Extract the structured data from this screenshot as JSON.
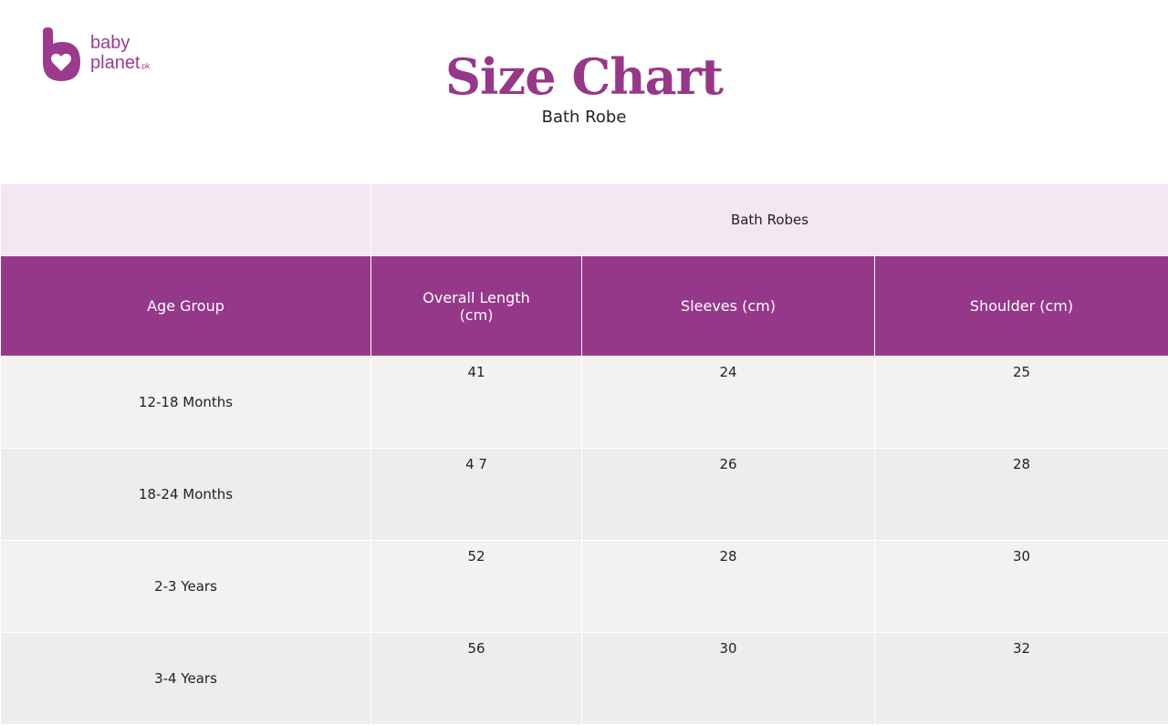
{
  "brand": {
    "line1": "baby",
    "line2": "planet",
    "suffix": ".pk",
    "color": "#96388a"
  },
  "title": "Size Chart",
  "subtitle": "Bath Robe",
  "table": {
    "group_header": "Bath Robes",
    "columns": [
      "Age Group",
      "Overall Length (cm)",
      "Sleeves (cm)",
      "Shoulder (cm)"
    ],
    "rows": [
      [
        "12-18 Months",
        "41",
        "24",
        "25"
      ],
      [
        "18-24 Months",
        "4 7",
        "26",
        "28"
      ],
      [
        "2-3 Years",
        "52",
        "28",
        "30"
      ],
      [
        "3-4 Years",
        "56",
        "30",
        "32"
      ]
    ]
  }
}
